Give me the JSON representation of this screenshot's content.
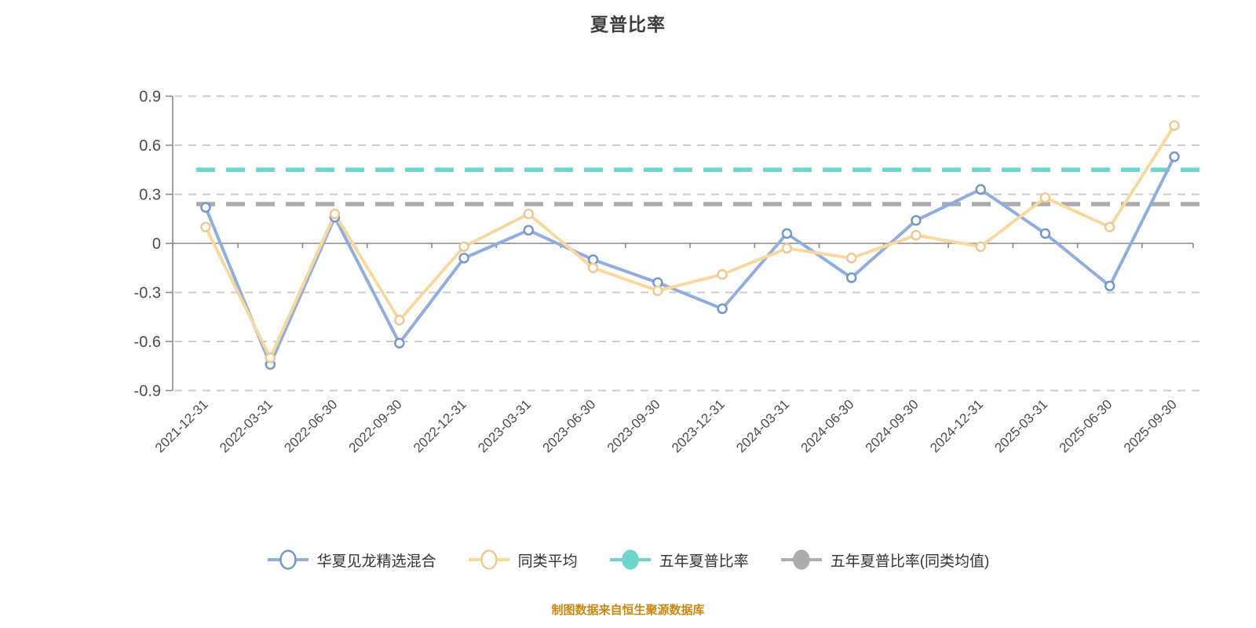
{
  "title": "夏普比率",
  "footer": "制图数据来自恒生聚源数据库",
  "colors": {
    "title_text": "#3E3E3E",
    "footer_text": "#C9880E",
    "legend_text": "#333333",
    "axis_line": "#8A8A8A",
    "grid_line": "#CCCCCC",
    "tick_label": "#4C4C4C",
    "fund_line": "#8FAEDF",
    "fund_marker_ring": "#7596CD",
    "peer_line": "#F9D89D",
    "peer_marker_ring": "#F2C892",
    "five_year_line": "#6ED5C9",
    "five_year_peer_line": "#ACACAC",
    "marker_fill": "#FFFFFF"
  },
  "legend": {
    "items": [
      {
        "label": "华夏见龙精选混合",
        "line": "#8FAEDF",
        "ring": "#7596CD",
        "fill": "#FFFFFF"
      },
      {
        "label": "同类平均",
        "line": "#F9D89D",
        "ring": "#F2C892",
        "fill": "#FFFFFF"
      },
      {
        "label": "五年夏普比率",
        "line": "#6ED5C9",
        "ring": "#6ED5C9",
        "fill": "#6ED5C9"
      },
      {
        "label": "五年夏普比率(同类均值)",
        "line": "#ACACAC",
        "ring": "#ACACAC",
        "fill": "#ACACAC"
      }
    ]
  },
  "chart_data": {
    "type": "line",
    "title": "夏普比率",
    "xlabel": "",
    "ylabel": "",
    "ylim": [
      -0.9,
      0.9
    ],
    "ytick_step": 0.3,
    "grid": "dashed",
    "legend_position": "bottom",
    "categories": [
      "2021-12-31",
      "2022-03-31",
      "2022-06-30",
      "2022-09-30",
      "2022-12-31",
      "2023-03-31",
      "2023-06-30",
      "2023-09-30",
      "2023-12-31",
      "2024-03-31",
      "2024-06-30",
      "2024-09-30",
      "2024-12-31",
      "2025-03-31",
      "2025-06-30",
      "2025-09-30"
    ],
    "series": [
      {
        "name": "华夏见龙精选混合",
        "type": "line",
        "values": [
          0.22,
          -0.74,
          0.16,
          -0.61,
          -0.09,
          0.08,
          -0.1,
          -0.24,
          -0.4,
          0.06,
          -0.21,
          0.14,
          0.33,
          0.06,
          -0.26,
          0.53
        ]
      },
      {
        "name": "同类平均",
        "type": "line",
        "values": [
          0.1,
          -0.7,
          0.18,
          -0.47,
          -0.02,
          0.18,
          -0.15,
          -0.29,
          -0.19,
          -0.03,
          -0.09,
          0.05,
          -0.02,
          0.28,
          0.1,
          0.72
        ]
      },
      {
        "name": "五年夏普比率",
        "type": "hline",
        "value": 0.45
      },
      {
        "name": "五年夏普比率(同类均值)",
        "type": "hline",
        "value": 0.24
      }
    ]
  }
}
